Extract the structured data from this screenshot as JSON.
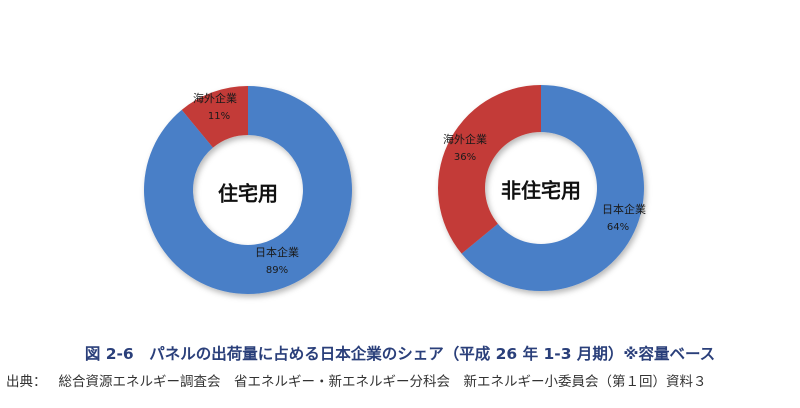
{
  "chart_data": [
    {
      "type": "pie",
      "donut": true,
      "center_label": "住宅用",
      "slices": [
        {
          "label": "海外企業",
          "value": 11,
          "value_text": "11%",
          "color": "#c33b37"
        },
        {
          "label": "日本企業",
          "value": 89,
          "value_text": "89%",
          "color": "#4a7fc7"
        }
      ]
    },
    {
      "type": "pie",
      "donut": true,
      "center_label": "非住宅用",
      "slices": [
        {
          "label": "日本企業",
          "value": 64,
          "value_text": "64%",
          "color": "#4a7fc7"
        },
        {
          "label": "海外企業",
          "value": 36,
          "value_text": "36%",
          "color": "#c33b37"
        }
      ]
    }
  ],
  "caption": "図 2-6　パネルの出荷量に占める日本企業のシェア（平成 26 年 1-3 月期）※容量ベース",
  "source": {
    "prefix": "出典：",
    "text": "総合資源エネルギー調査会　省エネルギー・新エネルギー分科会　新エネルギー小委員会（第１回）資料３"
  }
}
